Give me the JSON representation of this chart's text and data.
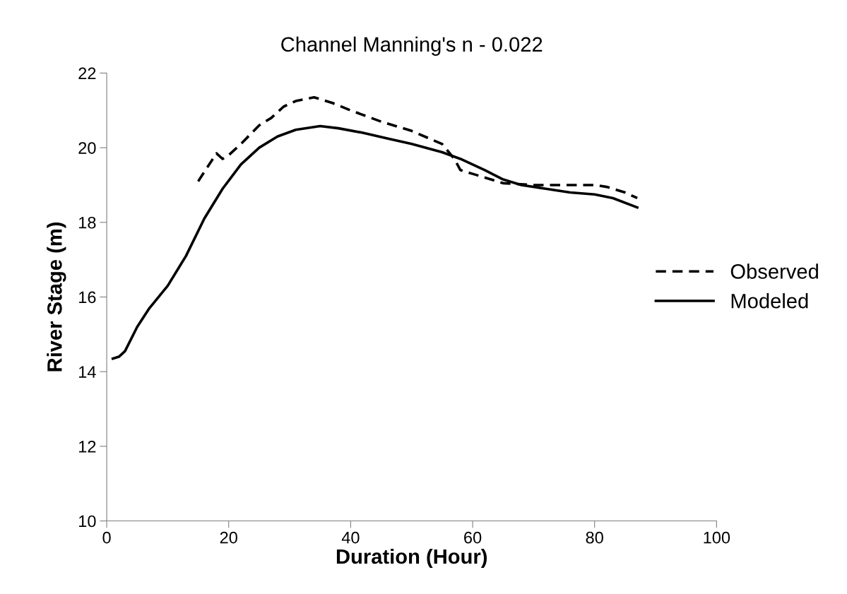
{
  "chart_data": {
    "type": "line",
    "title": "Channel Manning's n - 0.022",
    "xlabel": "Duration (Hour)",
    "ylabel": "River Stage (m)",
    "xlim": [
      0,
      100
    ],
    "xticks": [
      0,
      20,
      40,
      60,
      80,
      100
    ],
    "ylim": [
      10,
      22
    ],
    "yticks": [
      10,
      12,
      14,
      16,
      18,
      20,
      22
    ],
    "grid": false,
    "legend": "right",
    "marker": "none",
    "series": [
      {
        "name": "Observed",
        "color": "#000000",
        "line_style": "dashed",
        "x": [
          15,
          17,
          18,
          19,
          20,
          22,
          25,
          27,
          29,
          31,
          34,
          37,
          40,
          45,
          50,
          55,
          57,
          58,
          60,
          65,
          70,
          75,
          80,
          82,
          85,
          87
        ],
        "values": [
          19.1,
          19.6,
          19.85,
          19.7,
          19.8,
          20.1,
          20.6,
          20.8,
          21.1,
          21.25,
          21.35,
          21.2,
          21.0,
          20.7,
          20.45,
          20.1,
          19.7,
          19.4,
          19.3,
          19.05,
          19.0,
          19.0,
          19.0,
          18.95,
          18.8,
          18.65
        ]
      },
      {
        "name": "Modeled",
        "color": "#000000",
        "line_style": "solid",
        "x": [
          1,
          2,
          3,
          5,
          7,
          10,
          13,
          16,
          19,
          22,
          25,
          28,
          31,
          35,
          38,
          42,
          46,
          50,
          55,
          58,
          62,
          65,
          68,
          72,
          76,
          80,
          83,
          87
        ],
        "values": [
          14.35,
          14.4,
          14.55,
          15.2,
          15.7,
          16.3,
          17.1,
          18.1,
          18.9,
          19.55,
          20.0,
          20.3,
          20.48,
          20.58,
          20.52,
          20.4,
          20.25,
          20.1,
          19.88,
          19.7,
          19.4,
          19.15,
          19.0,
          18.9,
          18.8,
          18.75,
          18.65,
          18.4
        ]
      }
    ]
  }
}
